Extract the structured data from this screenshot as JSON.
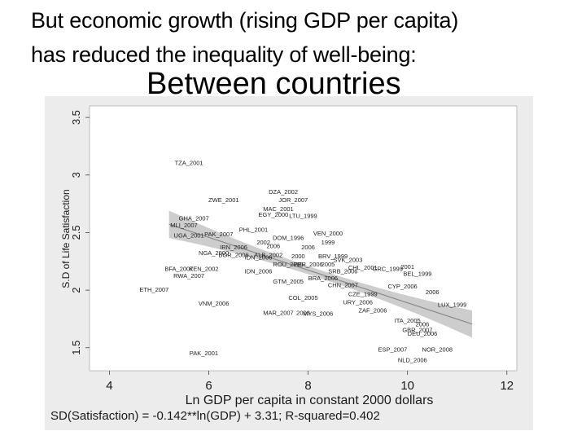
{
  "slide": {
    "heading_line1": "But economic growth (rising GDP per capita)",
    "heading_line2": "has reduced the inequality of well-being:",
    "subheading": "Between countries"
  },
  "chart_data": {
    "type": "scatter",
    "xlabel": "Ln GDP per capita in constant 2000 dollars",
    "ylabel": "S.D of Life Satisfaction",
    "xlim": [
      3.6,
      12.2
    ],
    "ylim": [
      1.3,
      3.6
    ],
    "xticks": [
      4,
      6,
      8,
      10,
      12
    ],
    "yticks": [
      1.5,
      2,
      2.5,
      3,
      3.5
    ],
    "grid": false,
    "annotation": "SD(Satisfaction) = -0.142**ln(GDP) + 3.31; R-squared=0.402",
    "fit_line": {
      "intercept": 3.31,
      "slope": -0.142,
      "x_range": [
        5.2,
        11.3
      ]
    },
    "colors": {
      "plot_bg": "#ffffff",
      "panel_bg": "#ececec",
      "band": "#bcbcbc",
      "fit": "#8a8a8a",
      "text": "#1a1a1a"
    },
    "points": [
      {
        "label": "TZA_2001",
        "x": 5.6,
        "y": 3.1
      },
      {
        "label": "DZA_2002",
        "x": 7.5,
        "y": 2.85
      },
      {
        "label": "JOR_2007",
        "x": 7.7,
        "y": 2.78
      },
      {
        "label": "ZWE_2001",
        "x": 6.3,
        "y": 2.78
      },
      {
        "label": "MAC_2001",
        "x": 7.4,
        "y": 2.7
      },
      {
        "label": "EGY_2000",
        "x": 7.3,
        "y": 2.65
      },
      {
        "label": "LTU_1999",
        "x": 7.9,
        "y": 2.64
      },
      {
        "label": "GHA_2007",
        "x": 5.7,
        "y": 2.62
      },
      {
        "label": "MLI_2007",
        "x": 5.5,
        "y": 2.56
      },
      {
        "label": "PHL_2001",
        "x": 6.9,
        "y": 2.52
      },
      {
        "label": "VEN_2000",
        "x": 8.4,
        "y": 2.49
      },
      {
        "label": "UGA_2001",
        "x": 5.6,
        "y": 2.47
      },
      {
        "label": "PAK_2007",
        "x": 6.2,
        "y": 2.48
      },
      {
        "label": "DOM_1996",
        "x": 7.6,
        "y": 2.45
      },
      {
        "label": "2002",
        "x": 7.1,
        "y": 2.41
      },
      {
        "label": "2006",
        "x": 7.3,
        "y": 2.38
      },
      {
        "label": "1999",
        "x": 8.4,
        "y": 2.41
      },
      {
        "label": "2006",
        "x": 8.0,
        "y": 2.37
      },
      {
        "label": "IRN_2006",
        "x": 6.5,
        "y": 2.37
      },
      {
        "label": "NGA_2000",
        "x": 6.1,
        "y": 2.32
      },
      {
        "label": "BGR_2006",
        "x": 6.5,
        "y": 2.3
      },
      {
        "label": "IDN_2006",
        "x": 7.0,
        "y": 2.28
      },
      {
        "label": "ALB_2002",
        "x": 7.2,
        "y": 2.3
      },
      {
        "label": "2000",
        "x": 7.8,
        "y": 2.29
      },
      {
        "label": "BRV_1999",
        "x": 8.5,
        "y": 2.29
      },
      {
        "label": "SVK_2003",
        "x": 8.8,
        "y": 2.26
      },
      {
        "label": "ROU_2005",
        "x": 7.6,
        "y": 2.22
      },
      {
        "label": "PER_2006",
        "x": 8.0,
        "y": 2.22
      },
      {
        "label": "2005",
        "x": 8.4,
        "y": 2.22
      },
      {
        "label": "BFA_2007",
        "x": 5.4,
        "y": 2.18
      },
      {
        "label": "RWA_2007",
        "x": 5.6,
        "y": 2.12
      },
      {
        "label": "KEN_2002",
        "x": 5.9,
        "y": 2.18
      },
      {
        "label": "IDN_2006",
        "x": 7.0,
        "y": 2.16
      },
      {
        "label": "SRB_2006",
        "x": 8.7,
        "y": 2.16
      },
      {
        "label": "CHL_2001",
        "x": 9.1,
        "y": 2.19
      },
      {
        "label": "GRC_1999",
        "x": 9.6,
        "y": 2.18
      },
      {
        "label": "2001",
        "x": 10.0,
        "y": 2.2
      },
      {
        "label": "BEL_1999",
        "x": 10.2,
        "y": 2.14
      },
      {
        "label": "GTM_2005",
        "x": 7.6,
        "y": 2.07
      },
      {
        "label": "BRA_2006",
        "x": 8.3,
        "y": 2.1
      },
      {
        "label": "CHN_2007",
        "x": 8.7,
        "y": 2.04
      },
      {
        "label": "ETH_2007",
        "x": 4.9,
        "y": 2.0
      },
      {
        "label": "CYP_2006",
        "x": 9.9,
        "y": 2.03
      },
      {
        "label": "CZE_1999",
        "x": 9.1,
        "y": 1.96
      },
      {
        "label": "2006",
        "x": 10.5,
        "y": 1.98
      },
      {
        "label": "COL_2005",
        "x": 7.9,
        "y": 1.93
      },
      {
        "label": "URY_2006",
        "x": 9.0,
        "y": 1.89
      },
      {
        "label": "VNM_2006",
        "x": 6.1,
        "y": 1.88
      },
      {
        "label": "LUX_1999",
        "x": 10.9,
        "y": 1.87
      },
      {
        "label": "MAR_2007",
        "x": 7.4,
        "y": 1.8
      },
      {
        "label": "2003",
        "x": 7.9,
        "y": 1.8
      },
      {
        "label": "ZAF_2006",
        "x": 9.3,
        "y": 1.82
      },
      {
        "label": "MYS_2006",
        "x": 8.2,
        "y": 1.79
      },
      {
        "label": "ITA_2005",
        "x": 10.0,
        "y": 1.73
      },
      {
        "label": "2006",
        "x": 10.3,
        "y": 1.7
      },
      {
        "label": "GBR_2007",
        "x": 10.2,
        "y": 1.65
      },
      {
        "label": "DEU_2006",
        "x": 10.3,
        "y": 1.62
      },
      {
        "label": "PAK_2001",
        "x": 5.9,
        "y": 1.45
      },
      {
        "label": "ESP_2007",
        "x": 9.7,
        "y": 1.48
      },
      {
        "label": "NOR_2008",
        "x": 10.6,
        "y": 1.48
      },
      {
        "label": "NLD_2006",
        "x": 10.1,
        "y": 1.39
      }
    ]
  }
}
